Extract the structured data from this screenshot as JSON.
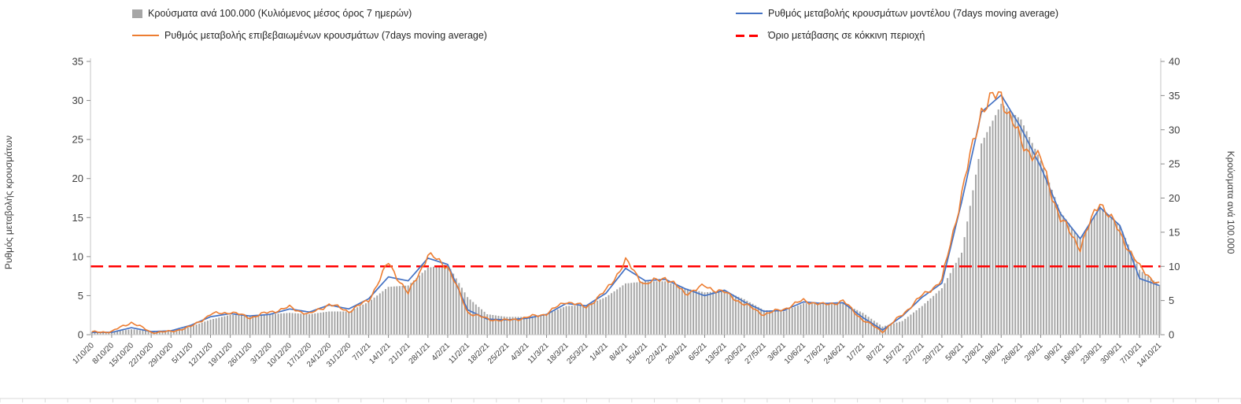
{
  "legend": {
    "bars": "Κρούσματα ανά 100.000 (Κυλιόμενος μέσος όρος 7 ημερών)",
    "model": "Ρυθμός μεταβολής κρουσμάτων μοντέλου (7days moving average)",
    "confirmed": "Ρυθμός μεταβολής επιβεβαιωμένων κρουσμάτων (7days moving average)",
    "threshold": "Όριο μετάβασης σε κόκκινη περιοχή"
  },
  "axes": {
    "left_title": "Ρυθμός μεταβολής κρουσμάτων",
    "right_title": "Κρούσματα ανά 100.000",
    "left_min": 0,
    "left_max": 35,
    "left_step": 5,
    "right_min": 0,
    "right_max": 40,
    "right_step": 5
  },
  "colors": {
    "bars": "#a6a6a6",
    "model": "#4472c4",
    "confirmed": "#ed7d31",
    "threshold": "#ff0000",
    "axis_line": "#c6c6c6",
    "tick": "#8c8c8c",
    "tick_label": "#404040"
  },
  "chart_data": {
    "type": "combo bar+line",
    "title": "",
    "legend_position": "top",
    "grid": false,
    "ylim_left": [
      0,
      35
    ],
    "ylim_right": [
      0,
      40
    ],
    "x": [
      "1/10/20",
      "8/10/20",
      "15/10/20",
      "22/10/20",
      "29/10/20",
      "5/11/20",
      "12/11/20",
      "19/11/20",
      "26/11/20",
      "3/12/20",
      "10/12/20",
      "17/12/20",
      "24/12/20",
      "31/12/20",
      "7/1/21",
      "14/1/21",
      "21/1/21",
      "28/1/21",
      "4/2/21",
      "11/2/21",
      "18/2/21",
      "25/2/21",
      "4/3/21",
      "11/3/21",
      "18/3/21",
      "25/3/21",
      "1/4/21",
      "8/4/21",
      "15/4/21",
      "22/4/21",
      "29/4/21",
      "6/5/21",
      "13/5/21",
      "20/5/21",
      "27/5/21",
      "3/6/21",
      "10/6/21",
      "17/6/21",
      "24/6/21",
      "1/7/21",
      "8/7/21",
      "15/7/21",
      "22/7/21",
      "29/7/21",
      "5/8/21",
      "12/8/21",
      "19/8/21",
      "26/8/21",
      "2/9/21",
      "9/9/21",
      "16/9/21",
      "23/9/21",
      "30/9/21",
      "7/10/21",
      "14/10/21"
    ],
    "series": [
      {
        "name": "Κρούσματα ανά 100.000 (Κυλιόμενος μέσος όρος 7 ημερών)",
        "type": "bar",
        "axis": "right",
        "values": [
          0.4,
          0.4,
          0.8,
          0.5,
          0.5,
          1.2,
          2.2,
          2.9,
          2.8,
          3.0,
          3.2,
          3.0,
          3.4,
          3.4,
          4.8,
          7.0,
          7.2,
          9.8,
          10.3,
          5.5,
          3.0,
          2.6,
          2.6,
          3.0,
          4.2,
          4.3,
          5.5,
          7.5,
          7.8,
          7.8,
          6.8,
          6.2,
          6.4,
          5.2,
          3.6,
          3.4,
          4.6,
          4.6,
          4.6,
          3.2,
          1.2,
          2.0,
          4.2,
          6.8,
          12.0,
          28.0,
          33.8,
          31.5,
          25.5,
          18.0,
          14.0,
          18.8,
          16.0,
          9.5,
          7.3
        ]
      },
      {
        "name": "Ρυθμός μεταβολής κρουσμάτων μοντέλου (7days moving average)",
        "type": "line",
        "axis": "left",
        "values": [
          0.3,
          0.3,
          0.9,
          0.4,
          0.5,
          1.2,
          2.3,
          2.7,
          2.4,
          2.6,
          3.3,
          2.9,
          3.8,
          3.3,
          4.6,
          7.4,
          6.9,
          9.8,
          9.0,
          3.2,
          2.0,
          1.9,
          2.1,
          2.6,
          4.0,
          3.7,
          5.3,
          8.5,
          6.9,
          7.1,
          5.9,
          5.0,
          5.7,
          4.2,
          3.0,
          3.1,
          4.2,
          4.0,
          4.1,
          2.2,
          0.6,
          2.4,
          4.8,
          6.6,
          17.0,
          28.5,
          30.7,
          26.5,
          21.5,
          15.5,
          12.3,
          16.3,
          14.0,
          7.2,
          6.3
        ]
      },
      {
        "name": "Ρυθμός μεταβολής επιβεβαιωμένων κρουσμάτων (7days moving average)",
        "type": "line",
        "axis": "left",
        "values": [
          0.3,
          0.4,
          1.6,
          0.3,
          0.4,
          1.0,
          2.6,
          2.9,
          2.2,
          2.9,
          3.5,
          2.6,
          3.9,
          3.0,
          4.4,
          9.2,
          5.2,
          10.2,
          8.8,
          2.9,
          2.0,
          1.8,
          2.2,
          2.7,
          4.3,
          3.5,
          5.6,
          9.4,
          6.4,
          7.4,
          5.3,
          6.2,
          5.4,
          3.9,
          2.6,
          3.3,
          4.4,
          3.8,
          4.3,
          1.9,
          0.4,
          2.6,
          5.0,
          6.9,
          18.0,
          29.0,
          30.9,
          24.5,
          22.4,
          14.8,
          11.2,
          17.2,
          13.0,
          8.6,
          6.4
        ]
      },
      {
        "name": "Όριο μετάβασης σε κόκκινη περιοχή",
        "type": "threshold-line",
        "axis": "left",
        "value": 8.75
      }
    ]
  }
}
